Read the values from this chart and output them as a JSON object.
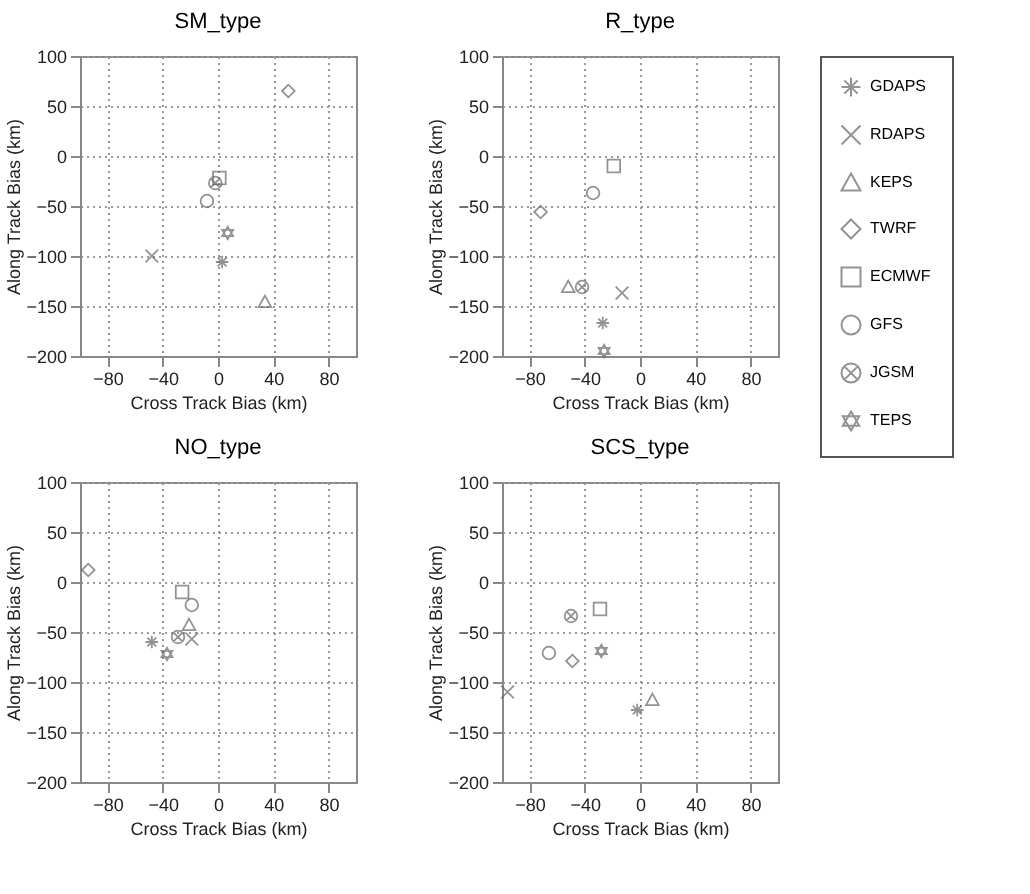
{
  "chart_data": [
    {
      "type": "scatter",
      "title": "SM_type",
      "xlabel": "Cross Track Bias (km)",
      "ylabel": "Along Track Bias (km)",
      "xlim": [
        -100,
        100
      ],
      "xticks": [
        -80,
        -40,
        0,
        40,
        80
      ],
      "ylim": [
        -200,
        100
      ],
      "yticks": [
        -200,
        -150,
        -100,
        -50,
        0,
        50,
        100
      ],
      "grid": true,
      "legend": "right",
      "series": [
        {
          "name": "GDAPS",
          "color": "#666666",
          "x": [
            3
          ],
          "values": [
            -106
          ]
        },
        {
          "name": "RDAPS",
          "color": "#666666",
          "marker": "cross",
          "x": [
            -48
          ],
          "values": [
            -100
          ]
        },
        {
          "name": "KEPS",
          "color": "#666666",
          "marker": "triangle",
          "x": [
            34
          ],
          "values": [
            -146
          ]
        },
        {
          "name": "TWRF",
          "color": "#666666",
          "marker": "diamond",
          "x": [
            51
          ],
          "values": [
            65
          ]
        },
        {
          "name": "ECMWF",
          "color": "#666666",
          "marker": "square",
          "x": [
            1
          ],
          "values": [
            -22
          ]
        },
        {
          "name": "GFS",
          "color": "#666666",
          "marker": "circle",
          "x": [
            -8
          ],
          "values": [
            -45
          ]
        },
        {
          "name": "JGSM",
          "color": "#666666",
          "x": [
            -2
          ],
          "values": [
            -27
          ]
        },
        {
          "name": "TEPS",
          "color": "#666666",
          "marker": "star",
          "x": [
            7
          ],
          "values": [
            -77
          ]
        }
      ]
    },
    {
      "type": "scatter",
      "title": "R_type",
      "xlabel": "Cross Track Bias (km)",
      "ylabel": "Along Track Bias (km)",
      "xlim": [
        -100,
        100
      ],
      "xticks": [
        -80,
        -40,
        0,
        40,
        80
      ],
      "ylim": [
        -200,
        100
      ],
      "yticks": [
        -200,
        -150,
        -100,
        -50,
        0,
        50,
        100
      ],
      "grid": true,
      "legend": "right",
      "series": [
        {
          "name": "GDAPS",
          "color": "#666666",
          "x": [
            -27
          ],
          "values": [
            -167
          ]
        },
        {
          "name": "RDAPS",
          "color": "#666666",
          "marker": "cross",
          "x": [
            -13
          ],
          "values": [
            -137
          ]
        },
        {
          "name": "KEPS",
          "color": "#666666",
          "marker": "triangle",
          "x": [
            -52
          ],
          "values": [
            -131
          ]
        },
        {
          "name": "TWRF",
          "color": "#666666",
          "marker": "diamond",
          "x": [
            -72
          ],
          "values": [
            -56
          ]
        },
        {
          "name": "ECMWF",
          "color": "#666666",
          "marker": "square",
          "x": [
            -19
          ],
          "values": [
            -10
          ]
        },
        {
          "name": "GFS",
          "color": "#666666",
          "marker": "circle",
          "x": [
            -34
          ],
          "values": [
            -37
          ]
        },
        {
          "name": "JGSM",
          "color": "#666666",
          "x": [
            -42
          ],
          "values": [
            -131
          ]
        },
        {
          "name": "TEPS",
          "color": "#666666",
          "marker": "star",
          "x": [
            -26
          ],
          "values": [
            -195
          ]
        }
      ]
    },
    {
      "type": "scatter",
      "title": "NO_type",
      "xlabel": "Cross Track Bias (km)",
      "ylabel": "Along Track Bias (km)",
      "xlim": [
        -100,
        100
      ],
      "xticks": [
        -80,
        -40,
        0,
        40,
        80
      ],
      "ylim": [
        -200,
        100
      ],
      "yticks": [
        -200,
        -150,
        -100,
        -50,
        0,
        50,
        100
      ],
      "grid": true,
      "legend": "right",
      "series": [
        {
          "name": "GDAPS",
          "color": "#666666",
          "x": [
            -48
          ],
          "values": [
            -60
          ]
        },
        {
          "name": "RDAPS",
          "color": "#666666",
          "marker": "cross",
          "x": [
            -19
          ],
          "values": [
            -57
          ]
        },
        {
          "name": "KEPS",
          "color": "#666666",
          "marker": "triangle",
          "x": [
            -21
          ],
          "values": [
            -43
          ]
        },
        {
          "name": "TWRF",
          "color": "#666666",
          "marker": "diamond",
          "x": [
            -94
          ],
          "values": [
            12
          ]
        },
        {
          "name": "ECMWF",
          "color": "#666666",
          "marker": "square",
          "x": [
            -26
          ],
          "values": [
            -10
          ]
        },
        {
          "name": "GFS",
          "color": "#666666",
          "marker": "circle",
          "x": [
            -19
          ],
          "values": [
            -23
          ]
        },
        {
          "name": "JGSM",
          "color": "#666666",
          "x": [
            -29
          ],
          "values": [
            -55
          ]
        },
        {
          "name": "TEPS",
          "color": "#666666",
          "marker": "star",
          "x": [
            -37
          ],
          "values": [
            -72
          ]
        }
      ]
    },
    {
      "type": "scatter",
      "title": "SCS_type",
      "xlabel": "Cross Track Bias (km)",
      "ylabel": "Along Track Bias (km)",
      "xlim": [
        -100,
        100
      ],
      "xticks": [
        -80,
        -40,
        0,
        40,
        80
      ],
      "ylim": [
        -200,
        100
      ],
      "yticks": [
        -200,
        -150,
        -100,
        -50,
        0,
        50,
        100
      ],
      "grid": true,
      "legend": "right",
      "series": [
        {
          "name": "GDAPS",
          "color": "#666666",
          "x": [
            -2
          ],
          "values": [
            -128
          ]
        },
        {
          "name": "RDAPS",
          "color": "#666666",
          "marker": "cross",
          "x": [
            -96
          ],
          "values": [
            -110
          ]
        },
        {
          "name": "KEPS",
          "color": "#666666",
          "marker": "triangle",
          "x": [
            9
          ],
          "values": [
            -118
          ]
        },
        {
          "name": "TWRF",
          "color": "#666666",
          "marker": "diamond",
          "x": [
            -49
          ],
          "values": [
            -79
          ]
        },
        {
          "name": "ECMWF",
          "color": "#666666",
          "marker": "square",
          "x": [
            -29
          ],
          "values": [
            -27
          ]
        },
        {
          "name": "GFS",
          "color": "#666666",
          "marker": "circle",
          "x": [
            -66
          ],
          "values": [
            -71
          ]
        },
        {
          "name": "JGSM",
          "color": "#666666",
          "x": [
            -50
          ],
          "values": [
            -34
          ]
        },
        {
          "name": "TEPS",
          "color": "#666666",
          "marker": "star",
          "x": [
            -28
          ],
          "values": [
            -69
          ]
        }
      ]
    }
  ]
}
